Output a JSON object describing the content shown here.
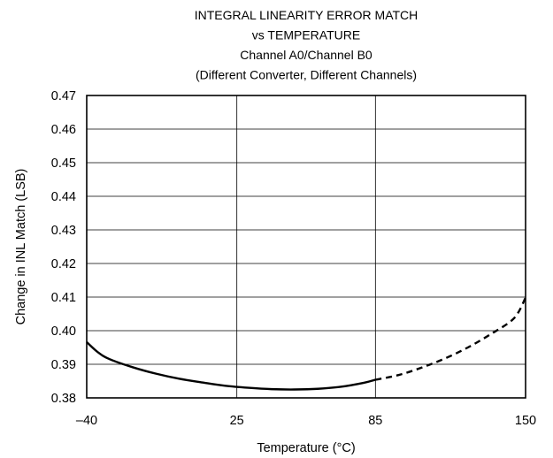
{
  "chart_data": {
    "type": "line",
    "title": [
      "INTEGRAL LINEARITY ERROR MATCH",
      "vs TEMPERATURE",
      "Channel A0/Channel B0",
      "(Different Converter, Different Channels)"
    ],
    "xlabel": "Temperature (°C)",
    "ylabel": "Change in INL Match (LSB)",
    "xlim": [
      -40,
      150
    ],
    "ylim": [
      0.38,
      0.47
    ],
    "x_ticks": [
      -40,
      25,
      85,
      150
    ],
    "x_tick_labels": [
      "–40",
      "25",
      "85",
      "150"
    ],
    "y_ticks": [
      0.38,
      0.39,
      0.4,
      0.41,
      0.42,
      0.43,
      0.44,
      0.45,
      0.46,
      0.47
    ],
    "y_tick_labels": [
      "0.38",
      "0.39",
      "0.40",
      "0.41",
      "0.42",
      "0.43",
      "0.44",
      "0.45",
      "0.46",
      "0.47"
    ],
    "grid": {
      "horizontal": true,
      "vertical": true
    },
    "line_color": "#000000",
    "series": [
      {
        "style": "solid",
        "x": [
          -40,
          -35,
          -30,
          -20,
          -10,
          0,
          10,
          20,
          30,
          40,
          50,
          60,
          70,
          80,
          85
        ],
        "y": [
          0.3966,
          0.3935,
          0.3915,
          0.3891,
          0.3872,
          0.3857,
          0.3846,
          0.3836,
          0.383,
          0.3826,
          0.3825,
          0.3827,
          0.3833,
          0.3845,
          0.3854
        ]
      },
      {
        "style": "dashed",
        "x": [
          85,
          95,
          105,
          115,
          125,
          135,
          145,
          150
        ],
        "y": [
          0.3854,
          0.3868,
          0.389,
          0.3917,
          0.395,
          0.399,
          0.4037,
          0.4098
        ]
      }
    ]
  }
}
